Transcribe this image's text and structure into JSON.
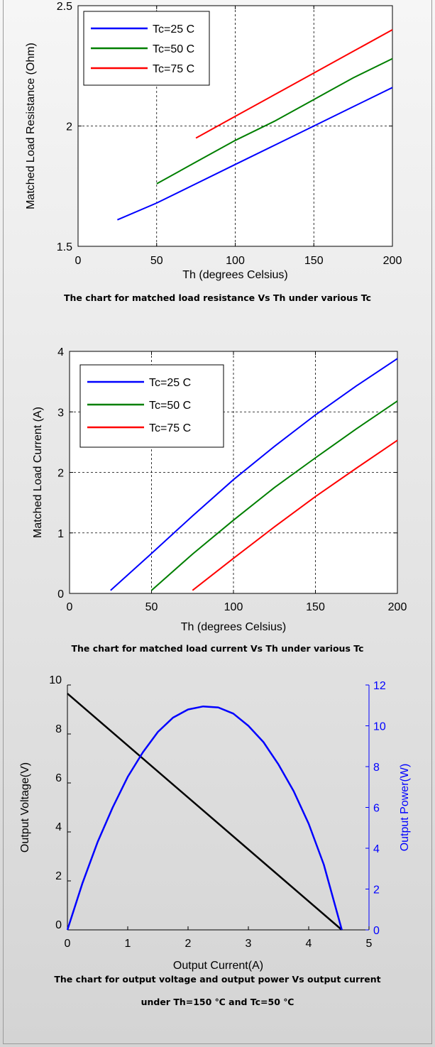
{
  "captions": [
    "The chart for matched load resistance Vs Th under various Tc",
    "The chart for matched load current Vs Th under various Tc",
    "The chart for output voltage and output power Vs output current",
    "under Th=150 ℃ and Tc=50 ℃"
  ],
  "chart_data": [
    {
      "type": "line",
      "xlabel": "Th (degrees Celsius)",
      "ylabel": "Matched Load Resistance (Ohm)",
      "xlim": [
        0,
        200
      ],
      "ylim": [
        1.5,
        2.5
      ],
      "xticks": [
        "0",
        "50",
        "100",
        "150",
        "200"
      ],
      "yticks": [
        "1.5",
        "2",
        "2.5"
      ],
      "xtick_values": [
        0,
        50,
        100,
        150,
        200
      ],
      "ytick_values": [
        1.5,
        2,
        2.5
      ],
      "grid": true,
      "legend": "top-left",
      "series": [
        {
          "name": "Tc=25 C",
          "color": "#0000ff",
          "x": [
            25,
            50,
            75,
            100,
            125,
            150,
            175,
            200
          ],
          "y": [
            1.61,
            1.68,
            1.76,
            1.84,
            1.92,
            2.0,
            2.08,
            2.16
          ]
        },
        {
          "name": "Tc=50 C",
          "color": "#007f00",
          "x": [
            50,
            75,
            100,
            125,
            150,
            175,
            200
          ],
          "y": [
            1.76,
            1.85,
            1.94,
            2.02,
            2.11,
            2.2,
            2.28
          ]
        },
        {
          "name": "Tc=75 C",
          "color": "#ff0000",
          "x": [
            75,
            100,
            125,
            150,
            175,
            200
          ],
          "y": [
            1.95,
            2.04,
            2.13,
            2.22,
            2.31,
            2.4
          ]
        }
      ]
    },
    {
      "type": "line",
      "xlabel": "Th (degrees Celsius)",
      "ylabel": "Matched Load Current (A)",
      "xlim": [
        0,
        200
      ],
      "ylim": [
        0,
        4
      ],
      "xticks": [
        "0",
        "50",
        "100",
        "150",
        "200"
      ],
      "yticks": [
        "0",
        "1",
        "2",
        "3",
        "4"
      ],
      "xtick_values": [
        0,
        50,
        100,
        150,
        200
      ],
      "ytick_values": [
        0,
        1,
        2,
        3,
        4
      ],
      "grid": true,
      "legend": "top-left",
      "series": [
        {
          "name": "Tc=25 C",
          "color": "#0000ff",
          "x": [
            25,
            50,
            75,
            100,
            125,
            150,
            175,
            200
          ],
          "y": [
            0.05,
            0.66,
            1.28,
            1.88,
            2.43,
            2.95,
            3.43,
            3.88
          ]
        },
        {
          "name": "Tc=50 C",
          "color": "#007f00",
          "x": [
            50,
            75,
            100,
            125,
            150,
            175,
            200
          ],
          "y": [
            0.05,
            0.65,
            1.21,
            1.75,
            2.24,
            2.72,
            3.18
          ]
        },
        {
          "name": "Tc=75 C",
          "color": "#ff0000",
          "x": [
            75,
            100,
            125,
            150,
            175,
            200
          ],
          "y": [
            0.05,
            0.58,
            1.1,
            1.6,
            2.07,
            2.53
          ]
        }
      ]
    },
    {
      "type": "line",
      "xlabel": "Output Current(A)",
      "ylabel": "Output Voltage(V)",
      "y2label": "Output Power(W)",
      "xlim": [
        0,
        5
      ],
      "ylim": [
        0,
        10
      ],
      "y2lim": [
        0,
        12
      ],
      "xticks": [
        "0",
        "1",
        "2",
        "3",
        "4",
        "5"
      ],
      "yticks": [
        "0",
        "2",
        "4",
        "6",
        "8",
        "10"
      ],
      "y2ticks": [
        "0",
        "2",
        "4",
        "6",
        "8",
        "10",
        "12"
      ],
      "xtick_values": [
        0,
        1,
        2,
        3,
        4,
        5
      ],
      "ytick_values": [
        0,
        2,
        4,
        6,
        8,
        10
      ],
      "y2tick_values": [
        0,
        2,
        4,
        6,
        8,
        10,
        12
      ],
      "grid": false,
      "series": [
        {
          "name": "Output Voltage",
          "color": "#000000",
          "axis": "left",
          "x": [
            0,
            4.55
          ],
          "y": [
            9.65,
            0
          ]
        },
        {
          "name": "Output Power",
          "color": "#0000ff",
          "axis": "right",
          "x": [
            0,
            0.25,
            0.5,
            0.75,
            1.0,
            1.25,
            1.5,
            1.75,
            2.0,
            2.25,
            2.5,
            2.75,
            3.0,
            3.25,
            3.5,
            3.75,
            4.0,
            4.25,
            4.55
          ],
          "y": [
            0,
            2.3,
            4.3,
            6.0,
            7.5,
            8.7,
            9.7,
            10.4,
            10.8,
            10.95,
            10.9,
            10.6,
            10.0,
            9.2,
            8.1,
            6.8,
            5.2,
            3.2,
            0
          ]
        }
      ]
    }
  ]
}
